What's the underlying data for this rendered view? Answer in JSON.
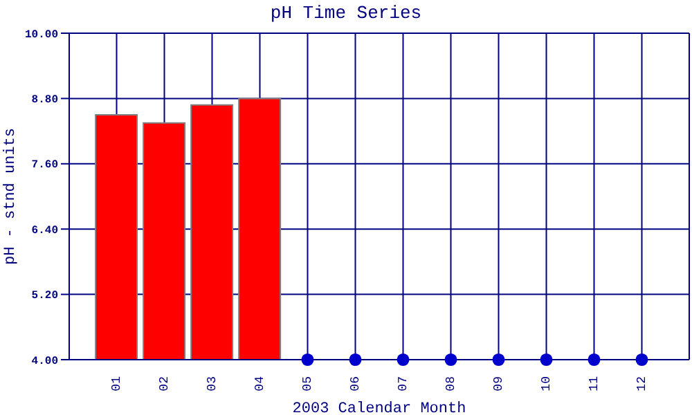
{
  "chart_data": {
    "type": "bar",
    "title": "pH Time Series",
    "xlabel": "2003 Calendar Month",
    "ylabel": "pH - stnd units",
    "categories": [
      "01",
      "02",
      "03",
      "04",
      "05",
      "06",
      "07",
      "08",
      "09",
      "10",
      "11",
      "12"
    ],
    "series": [
      {
        "color": "#ff0000",
        "values": [
          8.5,
          8.35,
          8.68,
          8.8,
          null,
          null,
          null,
          null,
          null,
          null,
          null,
          null
        ]
      },
      {
        "type": "scatter",
        "color": "#0000cc",
        "marker": "circle",
        "values": [
          null,
          null,
          null,
          null,
          4.0,
          4.0,
          4.0,
          4.0,
          4.0,
          4.0,
          4.0,
          4.0
        ]
      }
    ],
    "ylim": [
      4,
      10
    ],
    "yticks": [
      {
        "value": 4,
        "label": "4.00"
      },
      {
        "value": 5.2,
        "label": "5.20"
      },
      {
        "value": 6.4,
        "label": "6.40"
      },
      {
        "value": 7.6,
        "label": "7.60"
      },
      {
        "value": 8.8,
        "label": "8.80"
      },
      {
        "value": 10,
        "label": "10.00"
      }
    ],
    "grid": true
  }
}
